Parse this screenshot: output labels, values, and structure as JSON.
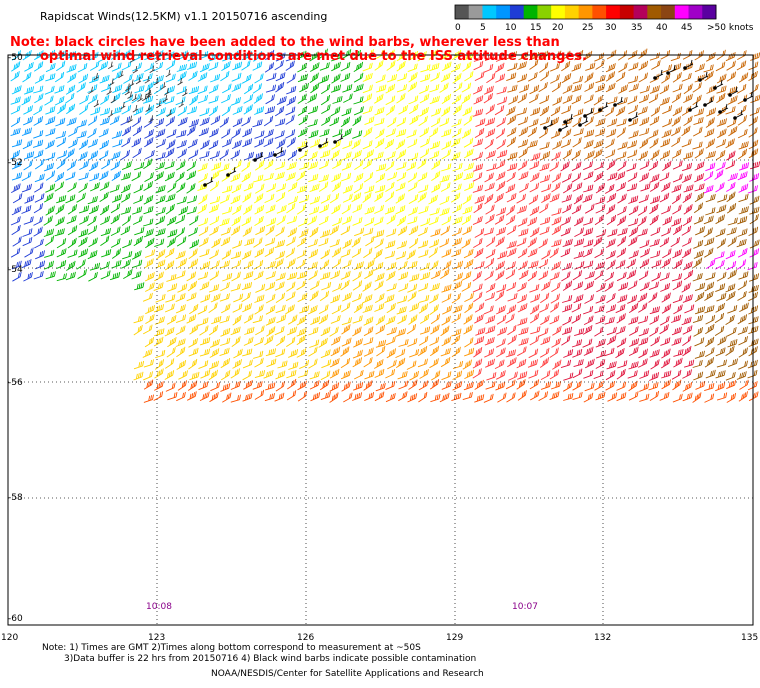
{
  "header": {
    "title": "Rapidscat Winds(12.5KM) v1.1 20150716 ascending",
    "note_line1": "Note: black circles have been added to the wind barbs, wherever less than",
    "note_line2": "optimal wind retrieval conditions are met due to the ISS attitude changes."
  },
  "legend": {
    "labels": [
      "0",
      "5",
      "10",
      "15",
      "20",
      "25",
      "30",
      "35",
      "40",
      "45",
      ">50 knots"
    ],
    "colors": [
      "#555555",
      "#9a9a9a",
      "#00c8ff",
      "#0096ff",
      "#1f3cd6",
      "#00b400",
      "#8ad200",
      "#ffff00",
      "#ffd200",
      "#ff9600",
      "#ff5000",
      "#ff0000",
      "#c80000",
      "#b4005a",
      "#a05a00",
      "#8b4513",
      "#ff00ff",
      "#a000c8",
      "#5a00a0"
    ]
  },
  "axes": {
    "lat_labels": [
      "-50",
      "-52",
      "-54",
      "-56",
      "-58",
      "-60"
    ],
    "lon_labels": [
      "120",
      "123",
      "126",
      "129",
      "132",
      "135"
    ]
  },
  "times": [
    "10:08",
    "10:07"
  ],
  "footer": {
    "line1": "Note: 1) Times are GMT 2)Times along bottom correspond to measurement at ~50S",
    "line2": "3)Data buffer is 22 hrs from 20150716 4) Black wind barbs indicate possible contamination",
    "line3": "NOAA/NESDIS/Center for Satellite Applications and Research"
  }
}
